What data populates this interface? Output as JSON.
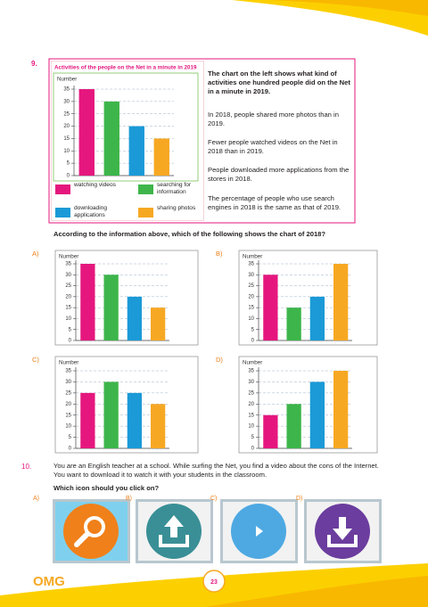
{
  "q9": {
    "number": "9.",
    "intro": "The chart on the left shows what kind of activities one hundred people did on the Net in a minute in 2019.",
    "statements": [
      "In 2018, people shared more photos than in 2019.",
      "Fewer people watched videos on the Net in 2018 than in 2019.",
      "People downloaded more applications from the stores in 2018.",
      "The percentage of people who use search engines in 2018 is the same as that of 2019."
    ],
    "question": "According to the information above, which of the following shows the chart of 2018?"
  },
  "chart_data": [
    {
      "type": "bar",
      "title": "Activities of the people on the Net in a minute in 2019",
      "y_label": "Number",
      "categories": [
        "watching videos",
        "searching for information",
        "downloading applications",
        "sharing photos"
      ],
      "values": [
        35,
        30,
        20,
        15
      ],
      "colors": [
        "#e5177e",
        "#3db54a",
        "#1b9ad7",
        "#f7a823"
      ],
      "ylim": [
        0,
        35
      ],
      "yticks": [
        0,
        5,
        10,
        15,
        20,
        25,
        30,
        35
      ],
      "grid": true
    },
    {
      "type": "bar",
      "label": "A)",
      "y_label": "Number",
      "values": [
        35,
        30,
        20,
        15
      ],
      "colors": [
        "#e5177e",
        "#3db54a",
        "#1b9ad7",
        "#f7a823"
      ],
      "ylim": [
        0,
        35
      ],
      "yticks": [
        0,
        5,
        10,
        15,
        20,
        25,
        30,
        35
      ],
      "grid": true
    },
    {
      "type": "bar",
      "label": "B)",
      "y_label": "Number",
      "values": [
        30,
        15,
        20,
        35
      ],
      "colors": [
        "#e5177e",
        "#3db54a",
        "#1b9ad7",
        "#f7a823"
      ],
      "ylim": [
        0,
        35
      ],
      "yticks": [
        0,
        5,
        10,
        15,
        20,
        25,
        30,
        35
      ],
      "grid": true
    },
    {
      "type": "bar",
      "label": "C)",
      "y_label": "Number",
      "values": [
        25,
        30,
        25,
        20
      ],
      "colors": [
        "#e5177e",
        "#3db54a",
        "#1b9ad7",
        "#f7a823"
      ],
      "ylim": [
        0,
        35
      ],
      "yticks": [
        0,
        5,
        10,
        15,
        20,
        25,
        30,
        35
      ],
      "grid": true
    },
    {
      "type": "bar",
      "label": "D)",
      "y_label": "Number",
      "values": [
        15,
        20,
        30,
        35
      ],
      "colors": [
        "#e5177e",
        "#3db54a",
        "#1b9ad7",
        "#f7a823"
      ],
      "ylim": [
        0,
        35
      ],
      "yticks": [
        0,
        5,
        10,
        15,
        20,
        25,
        30,
        35
      ],
      "grid": true
    }
  ],
  "q10": {
    "number": "10.",
    "text": "You are an English teacher at a school. While surfing the Net, you find a video about the cons of the Internet. You want to download it to watch it with your students in the classroom.",
    "question": "Which icon should you click on?",
    "options": [
      "A)",
      "B)",
      "C)",
      "D)"
    ]
  },
  "footer": {
    "logo": "OMG",
    "page": "23"
  }
}
